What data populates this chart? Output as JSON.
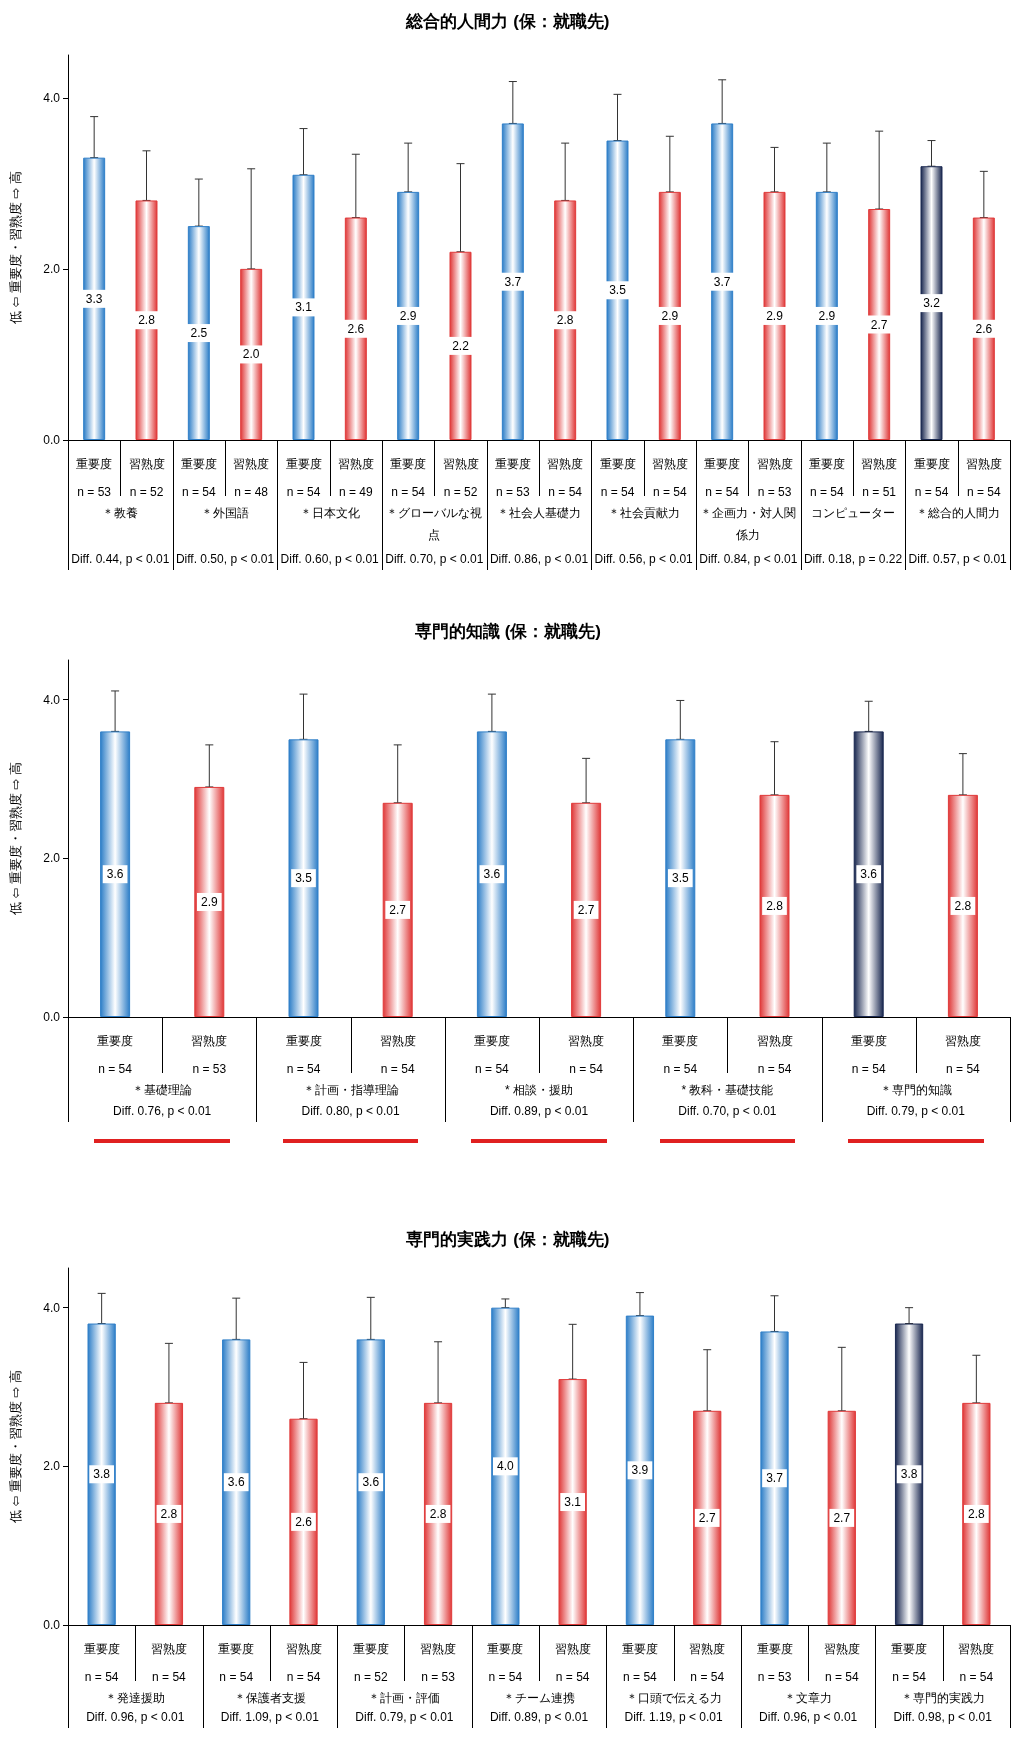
{
  "chart_data": [
    {
      "type": "bar",
      "title": "総合的人間力 (保：就職先)",
      "ylabel": "低 ⇦ 重要度・習熟度 ⇨ 高",
      "ylim": [
        0,
        4.5
      ],
      "yticks": [
        {
          "value": 0,
          "label": "0.0"
        },
        {
          "value": 2,
          "label": "2.0"
        },
        {
          "value": 4,
          "label": "4.0"
        }
      ],
      "grid": false,
      "categories": [
        "重要度\nn = 53",
        "習熟度\nn = 52",
        "重要度\nn = 54",
        "習熟度\nn = 48",
        "重要度\nn = 54",
        "習熟度\nn = 49",
        "重要度\nn = 54",
        "習熟度\nn = 52",
        "重要度\nn = 53",
        "習熟度\nn = 54",
        "重要度\nn = 54",
        "習熟度\nn = 54",
        "重要度\nn = 54",
        "習熟度\nn = 53",
        "重要度\nn = 54",
        "習熟度\nn = 51",
        "重要度\nn = 54",
        "習熟度\nn = 54"
      ],
      "values": [
        3.3,
        2.8,
        2.5,
        2.0,
        3.1,
        2.6,
        2.9,
        2.2,
        3.7,
        2.8,
        3.5,
        2.9,
        3.7,
        2.9,
        2.9,
        2.7,
        3.2,
        2.6
      ],
      "value_labels": [
        "3.3",
        "2.8",
        "2.5",
        "2.0",
        "3.1",
        "2.6",
        "2.9",
        "2.2",
        "3.7",
        "2.8",
        "3.5",
        "2.9",
        "3.7",
        "2.9",
        "2.9",
        "2.7",
        "3.2",
        "2.6"
      ],
      "errors": [
        [
          3.3,
          3.78
        ],
        [
          2.8,
          3.38
        ],
        [
          2.5,
          3.05
        ],
        [
          2.0,
          3.17
        ],
        [
          3.1,
          3.64
        ],
        [
          2.6,
          3.34
        ],
        [
          2.9,
          3.47
        ],
        [
          2.2,
          3.23
        ],
        [
          3.7,
          4.19
        ],
        [
          2.8,
          3.47
        ],
        [
          3.5,
          4.04
        ],
        [
          2.9,
          3.55
        ],
        [
          3.7,
          4.21
        ],
        [
          2.9,
          3.42
        ],
        [
          2.9,
          3.47
        ],
        [
          2.7,
          3.61
        ],
        [
          3.2,
          3.5
        ],
        [
          2.6,
          3.14
        ]
      ],
      "colors": [
        "#2f7fc8",
        "#e03a3a",
        "#2f7fc8",
        "#e03a3a",
        "#2f7fc8",
        "#e03a3a",
        "#2f7fc8",
        "#e03a3a",
        "#2f7fc8",
        "#e03a3a",
        "#2f7fc8",
        "#e03a3a",
        "#2f7fc8",
        "#e03a3a",
        "#2f7fc8",
        "#e03a3a",
        "#1a2850",
        "#e03a3a"
      ],
      "annotations": [
        "＊教養",
        "Diff. 0.44, p < 0.01",
        "＊外国語",
        "Diff. 0.50, p < 0.01",
        "＊日本文化",
        "Diff. 0.60, p < 0.01",
        "＊グローバルな視点",
        "Diff. 0.70, p < 0.01",
        "＊社会人基礎力",
        "Diff. 0.86, p < 0.01",
        "＊社会貢献力",
        "Diff. 0.56, p < 0.01",
        "＊企画力・対人関係力",
        "Diff. 0.84, p < 0.01",
        "コンピューター",
        "Diff. 0.18, p = 0.22",
        "＊総合的人間力",
        "Diff. 0.57, p < 0.01"
      ]
    },
    {
      "type": "bar",
      "title": "専門的知識 (保：就職先)",
      "ylabel": "低 ⇦ 重要度・習熟度 ⇨ 高",
      "ylim": [
        0,
        4.5
      ],
      "yticks": [
        {
          "value": 0,
          "label": "0.0"
        },
        {
          "value": 2,
          "label": "2.0"
        },
        {
          "value": 4,
          "label": "4.0"
        }
      ],
      "grid": false,
      "categories": [
        "重要度\nn = 54",
        "習熟度\nn = 53",
        "重要度\nn = 54",
        "習熟度\nn = 54",
        "重要度\nn = 54",
        "習熟度\nn = 54",
        "重要度\nn = 54",
        "習熟度\nn = 54",
        "重要度\nn = 54",
        "習熟度\nn = 54"
      ],
      "values": [
        3.6,
        2.9,
        3.5,
        2.7,
        3.6,
        2.7,
        3.5,
        2.8,
        3.6,
        2.8
      ],
      "value_labels": [
        "3.6",
        "2.9",
        "3.5",
        "2.7",
        "3.6",
        "2.7",
        "3.5",
        "2.8",
        "3.6",
        "2.8"
      ],
      "errors": [
        [
          3.6,
          4.11
        ],
        [
          2.9,
          3.43
        ],
        [
          3.5,
          4.07
        ],
        [
          2.7,
          3.43
        ],
        [
          3.6,
          4.07
        ],
        [
          2.7,
          3.26
        ],
        [
          3.5,
          3.99
        ],
        [
          2.8,
          3.47
        ],
        [
          3.6,
          3.98
        ],
        [
          2.8,
          3.32
        ]
      ],
      "colors": [
        "#2f7fc8",
        "#e03a3a",
        "#2f7fc8",
        "#e03a3a",
        "#2f7fc8",
        "#e03a3a",
        "#2f7fc8",
        "#e03a3a",
        "#1a2850",
        "#e03a3a"
      ],
      "annotations": [
        "＊基礎理論",
        "Diff. 0.76, p < 0.01",
        "＊計画・指導理論",
        "Diff. 0.80, p < 0.01",
        "* 相談・援助",
        "Diff. 0.89, p < 0.01",
        "* 教科・基礎技能",
        "Diff. 0.70, p < 0.01",
        "＊専門的知識",
        "Diff. 0.79, p < 0.01"
      ]
    },
    {
      "type": "bar",
      "title": "専門的実践力 (保：就職先)",
      "ylabel": "低 ⇦ 重要度・習熟度 ⇨ 高",
      "ylim": [
        0,
        4.5
      ],
      "yticks": [
        {
          "value": 0,
          "label": "0.0"
        },
        {
          "value": 2,
          "label": "2.0"
        },
        {
          "value": 4,
          "label": "4.0"
        }
      ],
      "grid": false,
      "categories": [
        "重要度\nn = 54",
        "習熟度\nn = 54",
        "重要度\nn = 54",
        "習熟度\nn = 54",
        "重要度\nn = 52",
        "習熟度\nn = 53",
        "重要度\nn = 54",
        "習熟度\nn = 54",
        "重要度\nn = 54",
        "習熟度\nn = 54",
        "重要度\nn = 53",
        "習熟度\nn = 54",
        "重要度\nn = 54",
        "習熟度\nn = 54"
      ],
      "values": [
        3.8,
        2.8,
        3.6,
        2.6,
        3.6,
        2.8,
        4.0,
        3.1,
        3.9,
        2.7,
        3.7,
        2.7,
        3.8,
        2.8
      ],
      "value_labels": [
        "3.8",
        "2.8",
        "3.6",
        "2.6",
        "3.6",
        "2.8",
        "4.0",
        "3.1",
        "3.9",
        "2.7",
        "3.7",
        "2.7",
        "3.8",
        "2.8"
      ],
      "errors": [
        [
          3.8,
          4.18
        ],
        [
          2.8,
          3.55
        ],
        [
          3.6,
          4.12
        ],
        [
          2.6,
          3.31
        ],
        [
          3.6,
          4.13
        ],
        [
          2.8,
          3.57
        ],
        [
          4.0,
          4.11
        ],
        [
          3.1,
          3.79
        ],
        [
          3.9,
          4.19
        ],
        [
          2.7,
          3.47
        ],
        [
          3.7,
          4.15
        ],
        [
          2.7,
          3.5
        ],
        [
          3.8,
          4.0
        ],
        [
          2.8,
          3.4
        ]
      ],
      "colors": [
        "#2f7fc8",
        "#e03a3a",
        "#2f7fc8",
        "#e03a3a",
        "#2f7fc8",
        "#e03a3a",
        "#2f7fc8",
        "#e03a3a",
        "#2f7fc8",
        "#e03a3a",
        "#2f7fc8",
        "#e03a3a",
        "#1a2850",
        "#e03a3a"
      ],
      "annotations": [
        "＊発達援助",
        "Diff. 0.96, p < 0.01",
        "＊保護者支援",
        "Diff. 1.09, p < 0.01",
        "＊計画・評価",
        "Diff. 0.79, p < 0.01",
        "＊チーム連携",
        "Diff. 0.89, p < 0.01",
        "＊口頭で伝える力",
        "Diff. 1.19, p < 0.01",
        "＊文章力",
        "Diff. 0.96, p < 0.01",
        "＊専門的実践力",
        "Diff. 0.98, p < 0.01"
      ]
    }
  ]
}
